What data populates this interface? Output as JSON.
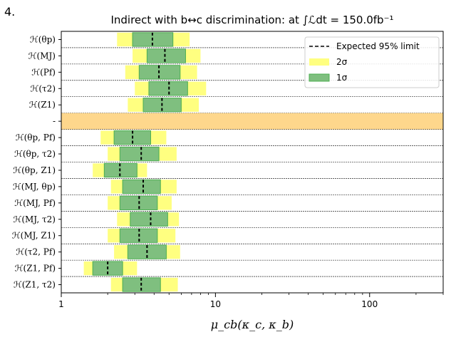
{
  "panel_label": "4.",
  "chart_data": {
    "type": "bar",
    "title": "Indirect with b↔c discrimination: at ∫ℒdt = 150.0fb⁻¹",
    "xlabel": "μ_cb(κ_c, κ_b)",
    "xscale": "log",
    "xlim": [
      1,
      300
    ],
    "xticks": [
      1,
      10,
      100
    ],
    "xtick_labels": [
      "1",
      "10",
      "100"
    ],
    "legend": {
      "placement": "top-right",
      "entries": [
        {
          "label": "Expected 95% limit",
          "style": "dashed-line"
        },
        {
          "label": "2σ",
          "style": "yellow-band"
        },
        {
          "label": "1σ",
          "style": "green-band"
        }
      ]
    },
    "colors": {
      "band_2sigma": "#ffff80",
      "band_1sigma": "#7fbf7f",
      "band_1sigma_edge": "#4caf50",
      "separator": "#fed78c",
      "median": "#000000"
    },
    "categories": [
      {
        "label": "ℋ(θp)",
        "lo2": 2.3,
        "lo1": 2.9,
        "med": 3.9,
        "hi1": 5.3,
        "hi2": 6.8
      },
      {
        "label": "ℋ(MJ)",
        "lo2": 2.9,
        "lo1": 3.6,
        "med": 4.7,
        "hi1": 6.4,
        "hi2": 8.0
      },
      {
        "label": "ℋ(Pf)",
        "lo2": 2.6,
        "lo1": 3.2,
        "med": 4.3,
        "hi1": 5.9,
        "hi2": 7.6
      },
      {
        "label": "ℋ(τ2)",
        "lo2": 3.0,
        "lo1": 3.7,
        "med": 5.0,
        "hi1": 6.6,
        "hi2": 8.7
      },
      {
        "label": "ℋ(Z1)",
        "lo2": 2.7,
        "lo1": 3.4,
        "med": 4.5,
        "hi1": 6.0,
        "hi2": 7.8
      },
      {
        "label": "-",
        "separator": true
      },
      {
        "label": "ℋ(θp, Pf)",
        "lo2": 1.8,
        "lo1": 2.2,
        "med": 2.9,
        "hi1": 3.8,
        "hi2": 4.8
      },
      {
        "label": "ℋ(θp, τ2)",
        "lo2": 2.0,
        "lo1": 2.4,
        "med": 3.3,
        "hi1": 4.3,
        "hi2": 5.6
      },
      {
        "label": "ℋ(θp, Z1)",
        "lo2": 1.6,
        "lo1": 1.9,
        "med": 2.4,
        "hi1": 3.1,
        "hi2": 3.6
      },
      {
        "label": "ℋ(MJ, θp)",
        "lo2": 2.1,
        "lo1": 2.5,
        "med": 3.4,
        "hi1": 4.4,
        "hi2": 5.6
      },
      {
        "label": "ℋ(MJ, Pf)",
        "lo2": 2.0,
        "lo1": 2.4,
        "med": 3.2,
        "hi1": 4.2,
        "hi2": 5.2
      },
      {
        "label": "ℋ(MJ, τ2)",
        "lo2": 2.3,
        "lo1": 2.8,
        "med": 3.8,
        "hi1": 4.9,
        "hi2": 5.8
      },
      {
        "label": "ℋ(MJ, Z1)",
        "lo2": 2.0,
        "lo1": 2.4,
        "med": 3.2,
        "hi1": 4.2,
        "hi2": 5.5
      },
      {
        "label": "ℋ(τ2, Pf)",
        "lo2": 2.2,
        "lo1": 2.7,
        "med": 3.6,
        "hi1": 4.8,
        "hi2": 5.9
      },
      {
        "label": "ℋ(Z1, Pf)",
        "lo2": 1.4,
        "lo1": 1.6,
        "med": 2.0,
        "hi1": 2.5,
        "hi2": 3.1
      },
      {
        "label": "ℋ(Z1, τ2)",
        "lo2": 2.1,
        "lo1": 2.5,
        "med": 3.3,
        "hi1": 4.4,
        "hi2": 5.7
      }
    ]
  }
}
